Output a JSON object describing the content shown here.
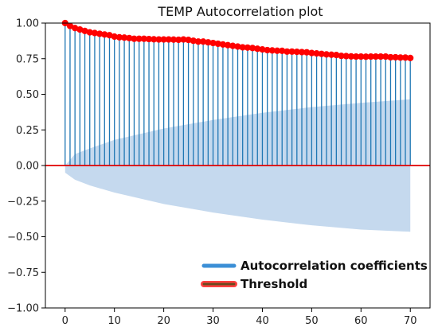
{
  "chart_data": {
    "type": "stem",
    "title": "TEMP Autocorrelation plot",
    "xlim": [
      -4,
      74
    ],
    "ylim": [
      -1.0,
      1.0
    ],
    "xticks": [
      0,
      10,
      20,
      30,
      40,
      50,
      60,
      70
    ],
    "yticks": [
      -1.0,
      -0.75,
      -0.5,
      -0.25,
      0.0,
      0.25,
      0.5,
      0.75,
      1.0
    ],
    "ytick_labels": [
      "−1.00",
      "−0.75",
      "−0.50",
      "−0.25",
      "0.00",
      "0.25",
      "0.50",
      "0.75",
      "1.00"
    ],
    "xtick_labels": [
      "0",
      "10",
      "20",
      "30",
      "40",
      "50",
      "60",
      "70"
    ],
    "grid": false,
    "legend_position": "bottom-right",
    "series": [
      {
        "name": "Autocorrelation coefficients",
        "color": "#1f77b4",
        "marker_color": "#ff0000",
        "x": [
          0,
          1,
          2,
          3,
          4,
          5,
          6,
          7,
          8,
          9,
          10,
          11,
          12,
          13,
          14,
          15,
          16,
          17,
          18,
          19,
          20,
          21,
          22,
          23,
          24,
          25,
          26,
          27,
          28,
          29,
          30,
          31,
          32,
          33,
          34,
          35,
          36,
          37,
          38,
          39,
          40,
          41,
          42,
          43,
          44,
          45,
          46,
          47,
          48,
          49,
          50,
          51,
          52,
          53,
          54,
          55,
          56,
          57,
          58,
          59,
          60,
          61,
          62,
          63,
          64,
          65,
          66,
          67,
          68,
          69,
          70
        ],
        "values": [
          1.0,
          0.98,
          0.965,
          0.955,
          0.945,
          0.935,
          0.93,
          0.925,
          0.92,
          0.915,
          0.905,
          0.9,
          0.898,
          0.895,
          0.89,
          0.89,
          0.89,
          0.888,
          0.886,
          0.885,
          0.885,
          0.885,
          0.884,
          0.883,
          0.885,
          0.882,
          0.876,
          0.87,
          0.87,
          0.865,
          0.86,
          0.855,
          0.85,
          0.845,
          0.84,
          0.835,
          0.83,
          0.828,
          0.825,
          0.82,
          0.815,
          0.81,
          0.808,
          0.806,
          0.805,
          0.8,
          0.8,
          0.798,
          0.796,
          0.795,
          0.79,
          0.787,
          0.784,
          0.78,
          0.778,
          0.776,
          0.77,
          0.768,
          0.766,
          0.765,
          0.765,
          0.764,
          0.765,
          0.765,
          0.765,
          0.765,
          0.76,
          0.76,
          0.758,
          0.758,
          0.755
        ]
      }
    ],
    "confidence_band": {
      "color": "#c5d9ee",
      "x": [
        0,
        2,
        5,
        10,
        20,
        30,
        40,
        50,
        60,
        70
      ],
      "upper": [
        0.0,
        0.08,
        0.12,
        0.18,
        0.26,
        0.32,
        0.37,
        0.41,
        0.44,
        0.465
      ],
      "lower": [
        -0.05,
        -0.1,
        -0.14,
        -0.19,
        -0.27,
        -0.33,
        -0.38,
        -0.42,
        -0.45,
        -0.465
      ]
    },
    "threshold": {
      "name": "Threshold",
      "value": 0.0,
      "color": "#e00000"
    }
  }
}
